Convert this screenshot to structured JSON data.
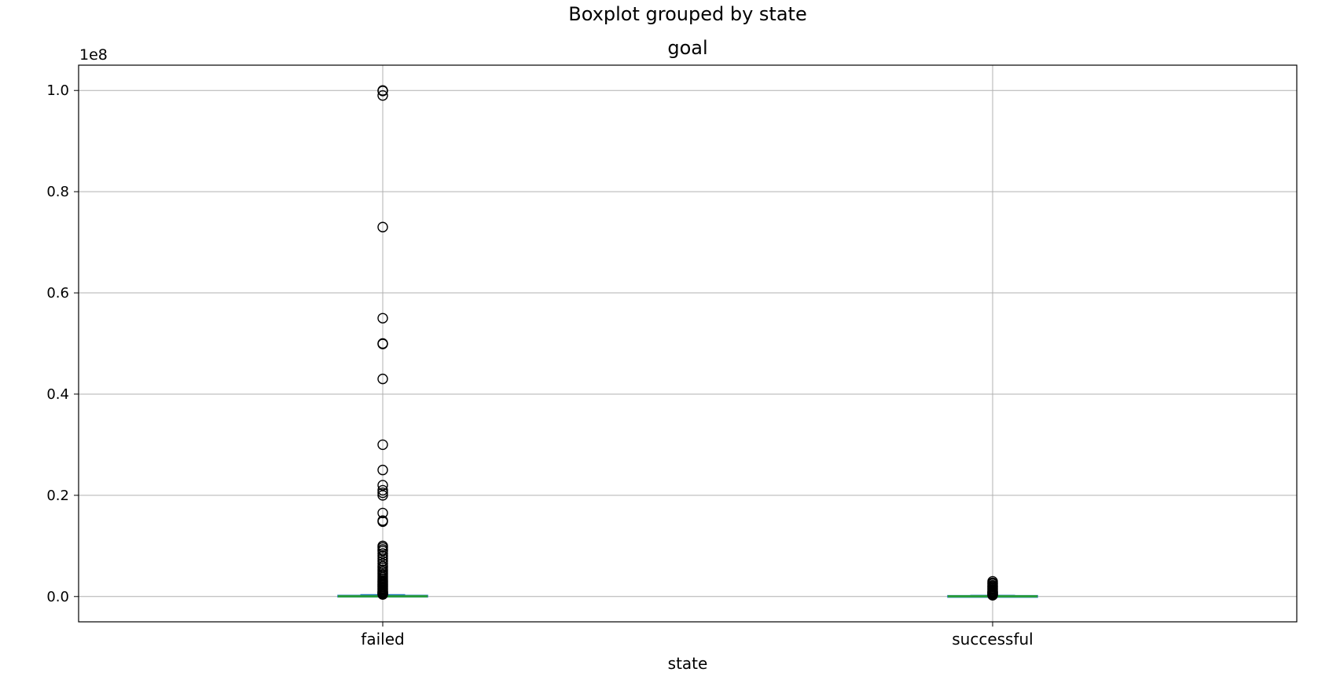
{
  "chart_data": {
    "type": "box",
    "suptitle": "Boxplot grouped by state",
    "title": "goal",
    "xlabel": "state",
    "ylabel": "",
    "y_multiplier": "1e8",
    "ylim": [
      -0.05,
      1.05
    ],
    "y_ticks": [
      0.0,
      0.2,
      0.4,
      0.6,
      0.8,
      1.0
    ],
    "y_tick_labels": [
      "0.0",
      "0.2",
      "0.4",
      "0.6",
      "0.8",
      "1.0"
    ],
    "categories": [
      "failed",
      "successful"
    ],
    "grid": true,
    "colors": {
      "median": "#2ca02c",
      "box": "#1f77b4",
      "outlier": "#000000",
      "grid": "#b0b0b0"
    },
    "boxes": [
      {
        "category": "failed",
        "q1": 0.0,
        "median": 0.0005,
        "q3": 0.0015,
        "whisker_low": 0.0,
        "whisker_high": 0.0035,
        "outliers": [
          1.0,
          0.999,
          0.99,
          0.73,
          0.55,
          0.5,
          0.499,
          0.43,
          0.3,
          0.25,
          0.22,
          0.21,
          0.205,
          0.2,
          0.165,
          0.15,
          0.148,
          0.1,
          0.097,
          0.093,
          0.09,
          0.085,
          0.08,
          0.075,
          0.07,
          0.065,
          0.06,
          0.057,
          0.053,
          0.05,
          0.047,
          0.044,
          0.041,
          0.038,
          0.035,
          0.032,
          0.03,
          0.028,
          0.026,
          0.024,
          0.022,
          0.02,
          0.018,
          0.016,
          0.014,
          0.012,
          0.01,
          0.009,
          0.008,
          0.007,
          0.006,
          0.005,
          0.0045,
          0.004
        ]
      },
      {
        "category": "successful",
        "q1": 0.0,
        "median": 0.0005,
        "q3": 0.001,
        "whisker_low": 0.0,
        "whisker_high": 0.0022,
        "outliers": [
          0.03,
          0.027,
          0.025,
          0.022,
          0.02,
          0.018,
          0.016,
          0.014,
          0.012,
          0.01,
          0.009,
          0.008,
          0.007,
          0.006,
          0.005,
          0.004,
          0.003,
          0.0025
        ]
      }
    ]
  }
}
